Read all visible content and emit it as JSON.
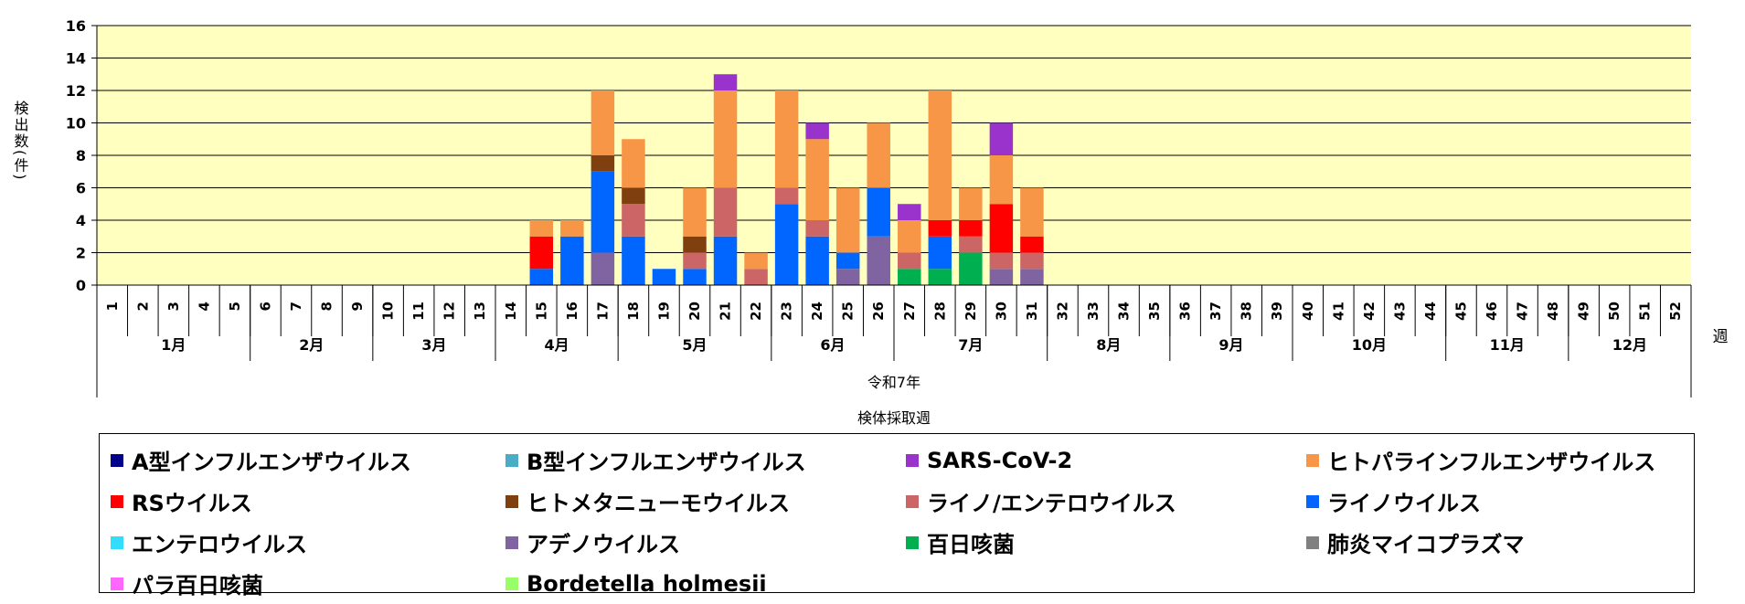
{
  "chart_data": {
    "type": "bar",
    "stacked": true,
    "ylabel": "検出数(件)",
    "xlabel": "検体採取週",
    "x_unit": "週",
    "era_label": "令和7年",
    "ylim": [
      0,
      16
    ],
    "yticks": [
      "0",
      "2",
      "4",
      "6",
      "8",
      "10",
      "12",
      "14",
      "16"
    ],
    "plot_background": "#FFFFC0",
    "grid": true,
    "legend_position": "bottom",
    "categories": [
      "1",
      "2",
      "3",
      "4",
      "5",
      "6",
      "7",
      "8",
      "9",
      "10",
      "11",
      "12",
      "13",
      "14",
      "15",
      "16",
      "17",
      "18",
      "19",
      "20",
      "21",
      "22",
      "23",
      "24",
      "25",
      "26",
      "27",
      "28",
      "29",
      "30",
      "31",
      "32",
      "33",
      "34",
      "35",
      "36",
      "37",
      "38",
      "39",
      "40",
      "41",
      "42",
      "43",
      "44",
      "45",
      "46",
      "47",
      "48",
      "49",
      "50",
      "51",
      "52"
    ],
    "months": [
      {
        "label": "1月",
        "weeks": 5
      },
      {
        "label": "2月",
        "weeks": 4
      },
      {
        "label": "3月",
        "weeks": 4
      },
      {
        "label": "4月",
        "weeks": 4
      },
      {
        "label": "5月",
        "weeks": 5
      },
      {
        "label": "6月",
        "weeks": 4
      },
      {
        "label": "7月",
        "weeks": 5
      },
      {
        "label": "8月",
        "weeks": 4
      },
      {
        "label": "9月",
        "weeks": 4
      },
      {
        "label": "10月",
        "weeks": 5
      },
      {
        "label": "11月",
        "weeks": 4
      },
      {
        "label": "12月",
        "weeks": 4
      }
    ],
    "series": [
      {
        "name": "A型インフルエンザウイルス",
        "color": "#00008B",
        "values": [
          0,
          0,
          0,
          0,
          0,
          0,
          0,
          0,
          0,
          0,
          0,
          0,
          0,
          0,
          0,
          0,
          0,
          0,
          0,
          0,
          0,
          0,
          0,
          0,
          0,
          0,
          0,
          0,
          0,
          0,
          0,
          0,
          0,
          0,
          0,
          0,
          0,
          0,
          0,
          0,
          0,
          0,
          0,
          0,
          0,
          0,
          0,
          0,
          0,
          0,
          0,
          0
        ]
      },
      {
        "name": "B型インフルエンザウイルス",
        "color": "#4BACC6",
        "values": [
          0,
          0,
          0,
          0,
          0,
          0,
          0,
          0,
          0,
          0,
          0,
          0,
          0,
          0,
          0,
          0,
          0,
          0,
          0,
          0,
          0,
          0,
          0,
          0,
          0,
          0,
          0,
          0,
          0,
          0,
          0,
          0,
          0,
          0,
          0,
          0,
          0,
          0,
          0,
          0,
          0,
          0,
          0,
          0,
          0,
          0,
          0,
          0,
          0,
          0,
          0,
          0
        ]
      },
      {
        "name": "SARS-CoV-2",
        "color": "#9933CC",
        "values": [
          0,
          0,
          0,
          0,
          0,
          0,
          0,
          0,
          0,
          0,
          0,
          0,
          0,
          0,
          0,
          0,
          0,
          0,
          0,
          0,
          1,
          0,
          0,
          1,
          0,
          0,
          1,
          0,
          0,
          2,
          0,
          0,
          0,
          0,
          0,
          0,
          0,
          0,
          0,
          0,
          0,
          0,
          0,
          0,
          0,
          0,
          0,
          0,
          0,
          0,
          0,
          0
        ]
      },
      {
        "name": "ヒトパラインフルエンザウイルス",
        "color": "#F79646",
        "values": [
          0,
          0,
          0,
          0,
          0,
          0,
          0,
          0,
          0,
          0,
          0,
          0,
          0,
          0,
          1,
          1,
          4,
          3,
          0,
          3,
          6,
          1,
          6,
          5,
          4,
          4,
          2,
          8,
          2,
          3,
          3,
          0,
          0,
          0,
          0,
          0,
          0,
          0,
          0,
          0,
          0,
          0,
          0,
          0,
          0,
          0,
          0,
          0,
          0,
          0,
          0,
          0
        ]
      },
      {
        "name": "RSウイルス",
        "color": "#FF0000",
        "values": [
          0,
          0,
          0,
          0,
          0,
          0,
          0,
          0,
          0,
          0,
          0,
          0,
          0,
          0,
          2,
          0,
          0,
          0,
          0,
          0,
          0,
          0,
          0,
          0,
          0,
          0,
          0,
          1,
          1,
          3,
          1,
          0,
          0,
          0,
          0,
          0,
          0,
          0,
          0,
          0,
          0,
          0,
          0,
          0,
          0,
          0,
          0,
          0,
          0,
          0,
          0,
          0
        ]
      },
      {
        "name": "ヒトメタニューモウイルス",
        "color": "#7F3F0F",
        "values": [
          0,
          0,
          0,
          0,
          0,
          0,
          0,
          0,
          0,
          0,
          0,
          0,
          0,
          0,
          0,
          0,
          1,
          1,
          0,
          1,
          0,
          0,
          0,
          0,
          0,
          0,
          0,
          0,
          0,
          0,
          0,
          0,
          0,
          0,
          0,
          0,
          0,
          0,
          0,
          0,
          0,
          0,
          0,
          0,
          0,
          0,
          0,
          0,
          0,
          0,
          0,
          0
        ]
      },
      {
        "name": "ライノ/エンテロウイルス",
        "color": "#CC6666",
        "values": [
          0,
          0,
          0,
          0,
          0,
          0,
          0,
          0,
          0,
          0,
          0,
          0,
          0,
          0,
          0,
          0,
          0,
          2,
          0,
          1,
          3,
          1,
          1,
          1,
          0,
          0,
          1,
          0,
          1,
          1,
          1,
          0,
          0,
          0,
          0,
          0,
          0,
          0,
          0,
          0,
          0,
          0,
          0,
          0,
          0,
          0,
          0,
          0,
          0,
          0,
          0,
          0
        ]
      },
      {
        "name": "ライノウイルス",
        "color": "#0066FF",
        "values": [
          0,
          0,
          0,
          0,
          0,
          0,
          0,
          0,
          0,
          0,
          0,
          0,
          0,
          0,
          1,
          3,
          5,
          3,
          1,
          1,
          3,
          0,
          5,
          3,
          1,
          3,
          0,
          2,
          0,
          0,
          0,
          0,
          0,
          0,
          0,
          0,
          0,
          0,
          0,
          0,
          0,
          0,
          0,
          0,
          0,
          0,
          0,
          0,
          0,
          0,
          0,
          0
        ]
      },
      {
        "name": "エンテロウイルス",
        "color": "#33DDFF",
        "values": [
          0,
          0,
          0,
          0,
          0,
          0,
          0,
          0,
          0,
          0,
          0,
          0,
          0,
          0,
          0,
          0,
          0,
          0,
          0,
          0,
          0,
          0,
          0,
          0,
          0,
          0,
          0,
          0,
          0,
          0,
          0,
          0,
          0,
          0,
          0,
          0,
          0,
          0,
          0,
          0,
          0,
          0,
          0,
          0,
          0,
          0,
          0,
          0,
          0,
          0,
          0,
          0
        ]
      },
      {
        "name": "アデノウイルス",
        "color": "#8064A2",
        "values": [
          0,
          0,
          0,
          0,
          0,
          0,
          0,
          0,
          0,
          0,
          0,
          0,
          0,
          0,
          0,
          0,
          2,
          0,
          0,
          0,
          0,
          0,
          0,
          0,
          1,
          3,
          0,
          0,
          0,
          1,
          1,
          0,
          0,
          0,
          0,
          0,
          0,
          0,
          0,
          0,
          0,
          0,
          0,
          0,
          0,
          0,
          0,
          0,
          0,
          0,
          0,
          0
        ]
      },
      {
        "name": "百日咳菌",
        "color": "#00B050",
        "values": [
          0,
          0,
          0,
          0,
          0,
          0,
          0,
          0,
          0,
          0,
          0,
          0,
          0,
          0,
          0,
          0,
          0,
          0,
          0,
          0,
          0,
          0,
          0,
          0,
          0,
          0,
          1,
          1,
          2,
          0,
          0,
          0,
          0,
          0,
          0,
          0,
          0,
          0,
          0,
          0,
          0,
          0,
          0,
          0,
          0,
          0,
          0,
          0,
          0,
          0,
          0,
          0
        ]
      },
      {
        "name": "肺炎マイコプラズマ",
        "color": "#808080",
        "values": [
          0,
          0,
          0,
          0,
          0,
          0,
          0,
          0,
          0,
          0,
          0,
          0,
          0,
          0,
          0,
          0,
          0,
          0,
          0,
          0,
          0,
          0,
          0,
          0,
          0,
          0,
          0,
          0,
          0,
          0,
          0,
          0,
          0,
          0,
          0,
          0,
          0,
          0,
          0,
          0,
          0,
          0,
          0,
          0,
          0,
          0,
          0,
          0,
          0,
          0,
          0,
          0
        ]
      },
      {
        "name": "パラ百日咳菌",
        "color": "#FF66FF",
        "values": [
          0,
          0,
          0,
          0,
          0,
          0,
          0,
          0,
          0,
          0,
          0,
          0,
          0,
          0,
          0,
          0,
          0,
          0,
          0,
          0,
          0,
          0,
          0,
          0,
          0,
          0,
          0,
          0,
          0,
          0,
          0,
          0,
          0,
          0,
          0,
          0,
          0,
          0,
          0,
          0,
          0,
          0,
          0,
          0,
          0,
          0,
          0,
          0,
          0,
          0,
          0,
          0
        ]
      },
      {
        "name": "Bordetella holmesii",
        "color": "#99FF66",
        "values": [
          0,
          0,
          0,
          0,
          0,
          0,
          0,
          0,
          0,
          0,
          0,
          0,
          0,
          0,
          0,
          0,
          0,
          0,
          0,
          0,
          0,
          0,
          0,
          0,
          0,
          0,
          0,
          0,
          0,
          0,
          0,
          0,
          0,
          0,
          0,
          0,
          0,
          0,
          0,
          0,
          0,
          0,
          0,
          0,
          0,
          0,
          0,
          0,
          0,
          0,
          0,
          0
        ]
      }
    ],
    "stack_order": [
      "百日咳菌",
      "アデノウイルス",
      "ライノウイルス",
      "ライノ/エンテロウイルス",
      "ヒトメタニューモウイルス",
      "RSウイルス",
      "ヒトパラインフルエンザウイルス",
      "SARS-CoV-2",
      "A型インフルエンザウイルス",
      "B型インフルエンザウイルス",
      "エンテロウイルス",
      "肺炎マイコプラズマ",
      "パラ百日咳菌",
      "Bordetella holmesii"
    ]
  }
}
